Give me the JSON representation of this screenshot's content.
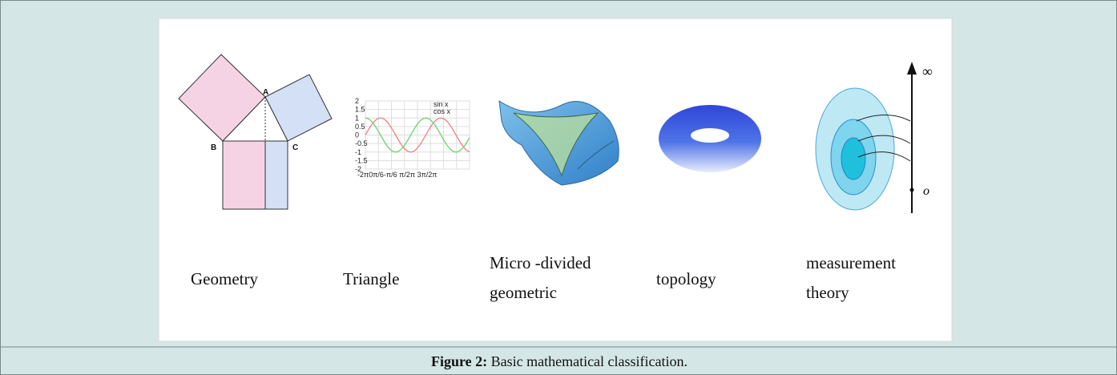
{
  "figure": {
    "panels": [
      {
        "label": "Geometry",
        "annotations": [
          "A",
          "B",
          "C"
        ]
      },
      {
        "label": "Triangle",
        "y_ticks": [
          "2",
          "1.5",
          "1",
          "0.5",
          "0",
          "-0.5",
          "-1",
          "-1.5",
          "-2"
        ],
        "x_ticks": "-2π0π/6-π/6 π/2π 3π/2π",
        "legend": [
          "sin x",
          "cos x"
        ]
      },
      {
        "label": [
          "Micro -divided",
          "geometric"
        ]
      },
      {
        "label": "topology"
      },
      {
        "label": [
          "measurement",
          "theory"
        ],
        "annotations": [
          "∞",
          "o"
        ]
      }
    ],
    "caption": {
      "number": "Figure 2:",
      "text": "Basic mathematical classification."
    }
  }
}
